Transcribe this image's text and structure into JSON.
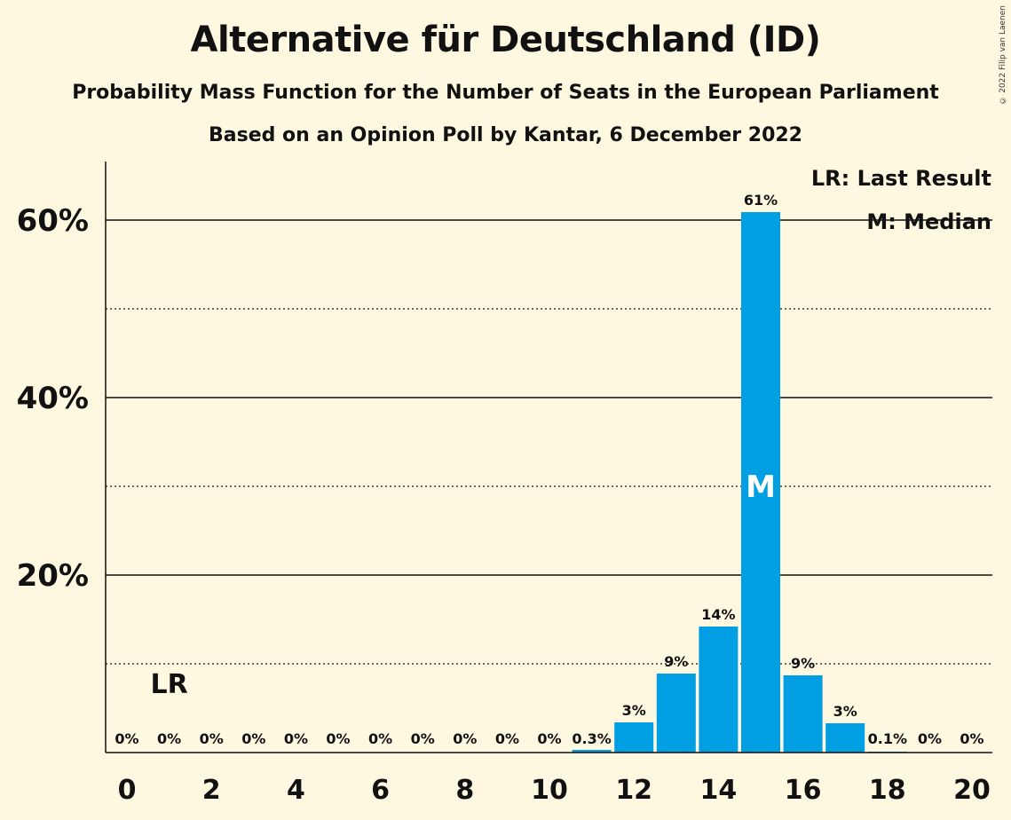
{
  "header": {
    "title": "Alternative für Deutschland (ID)",
    "subtitle": "Probability Mass Function for the Number of Seats in the European Parliament",
    "subtitle2": "Based on an Opinion Poll by Kantar, 6 December 2022",
    "copyright": "© 2022 Filip van Laenen"
  },
  "legend": {
    "last_result": "LR: Last Result",
    "median": "M: Median"
  },
  "colors": {
    "background": "#FFF8E1",
    "bar": "#009FE3",
    "text": "#111111"
  },
  "chart_data": {
    "type": "bar",
    "categories": [
      0,
      1,
      2,
      3,
      4,
      5,
      6,
      7,
      8,
      9,
      10,
      11,
      12,
      13,
      14,
      15,
      16,
      17,
      18,
      19,
      20
    ],
    "values": [
      0,
      0,
      0,
      0,
      0,
      0,
      0,
      0,
      0,
      0,
      0,
      0.3,
      3.4,
      8.9,
      14.2,
      60.9,
      8.7,
      3.3,
      0.1,
      0,
      0
    ],
    "data_labels": [
      "0%",
      "0%",
      "0%",
      "0%",
      "0%",
      "0%",
      "0%",
      "0%",
      "0%",
      "0%",
      "0%",
      "0.3%",
      "3%",
      "9%",
      "14%",
      "61%",
      "9%",
      "3%",
      "0.1%",
      "0%",
      "0%"
    ],
    "x_tick_labels": [
      "0",
      "2",
      "4",
      "6",
      "8",
      "10",
      "12",
      "14",
      "16",
      "18",
      "20"
    ],
    "y_tick_labels": [
      "20%",
      "40%",
      "60%"
    ],
    "y_major_gridlines": [
      20,
      40,
      60
    ],
    "y_minor_gridlines": [
      10,
      30,
      50
    ],
    "ylim": [
      0,
      66.5
    ],
    "last_result_seat": 1,
    "last_result_label": "LR",
    "median_seat": 15,
    "median_label": "M",
    "legend_position": "top-right"
  }
}
